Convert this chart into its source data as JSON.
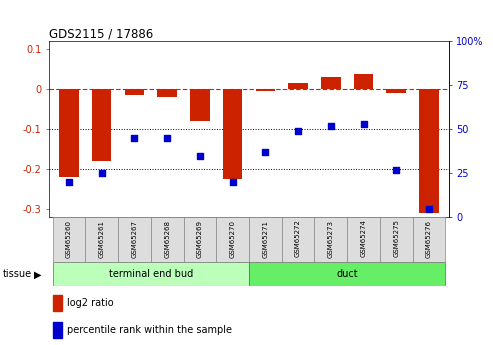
{
  "title": "GDS2115 / 17886",
  "samples": [
    "GSM65260",
    "GSM65261",
    "GSM65267",
    "GSM65268",
    "GSM65269",
    "GSM65270",
    "GSM65271",
    "GSM65272",
    "GSM65273",
    "GSM65274",
    "GSM65275",
    "GSM65276"
  ],
  "log2_ratio": [
    -0.22,
    -0.18,
    -0.015,
    -0.02,
    -0.08,
    -0.225,
    -0.005,
    0.015,
    0.032,
    0.038,
    -0.01,
    -0.31
  ],
  "percentile_rank": [
    20,
    25,
    45,
    45,
    35,
    20,
    37,
    49,
    52,
    53,
    27,
    5
  ],
  "groups": [
    {
      "label": "terminal end bud",
      "start": 0,
      "end": 6,
      "color": "#bbffbb"
    },
    {
      "label": "duct",
      "start": 6,
      "end": 12,
      "color": "#66ee66"
    }
  ],
  "bar_color": "#cc2200",
  "dot_color": "#0000cc",
  "ylim_left": [
    -0.32,
    0.12
  ],
  "ylim_right": [
    0,
    100
  ],
  "yticks_left": [
    0.1,
    0.0,
    -0.1,
    -0.2,
    -0.3
  ],
  "yticks_right": [
    100,
    75,
    50,
    25,
    0
  ],
  "dotline1": -0.1,
  "dotline2": -0.2,
  "legend_red_label": "log2 ratio",
  "legend_blue_label": "percentile rank within the sample",
  "tissue_label": "tissue",
  "background_color": "#ffffff",
  "bar_width": 0.6,
  "dot_size": 15
}
